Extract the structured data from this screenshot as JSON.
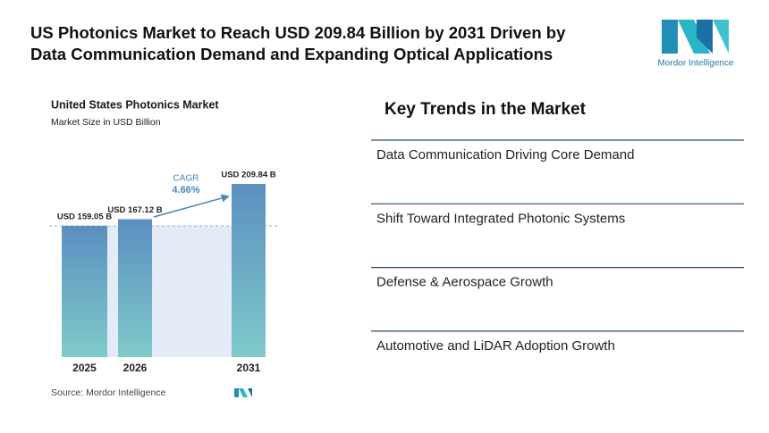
{
  "header": {
    "title_lines": [
      "US Photonics Market to Reach USD 209.84 Billion by 2031 Driven by",
      "Data Communication Demand and Expanding Optical Applications"
    ],
    "logo_text": "Mordor Intelligence"
  },
  "chart_data": {
    "type": "bar",
    "title": "United States Photonics Market",
    "subtitle": "Market Size in USD Billion",
    "categories": [
      "2025",
      "2026",
      "2031"
    ],
    "values": [
      159.05,
      167.12,
      209.84
    ],
    "value_labels": [
      "USD 159.05 B",
      "USD 167.12 B",
      "USD 209.84 B"
    ],
    "color": "#5f95c2",
    "annotation_label": "CAGR",
    "annotation_value": "4.66%",
    "source": "Source: Mordor Intelligence"
  },
  "key_trends": {
    "heading": "Key Trends in the Market",
    "items": [
      "Data Communication Driving Core Demand",
      "Shift Toward Integrated Photonic Systems",
      "Defense & Aerospace Growth",
      "Automotive and LiDAR Adoption Growth"
    ]
  }
}
